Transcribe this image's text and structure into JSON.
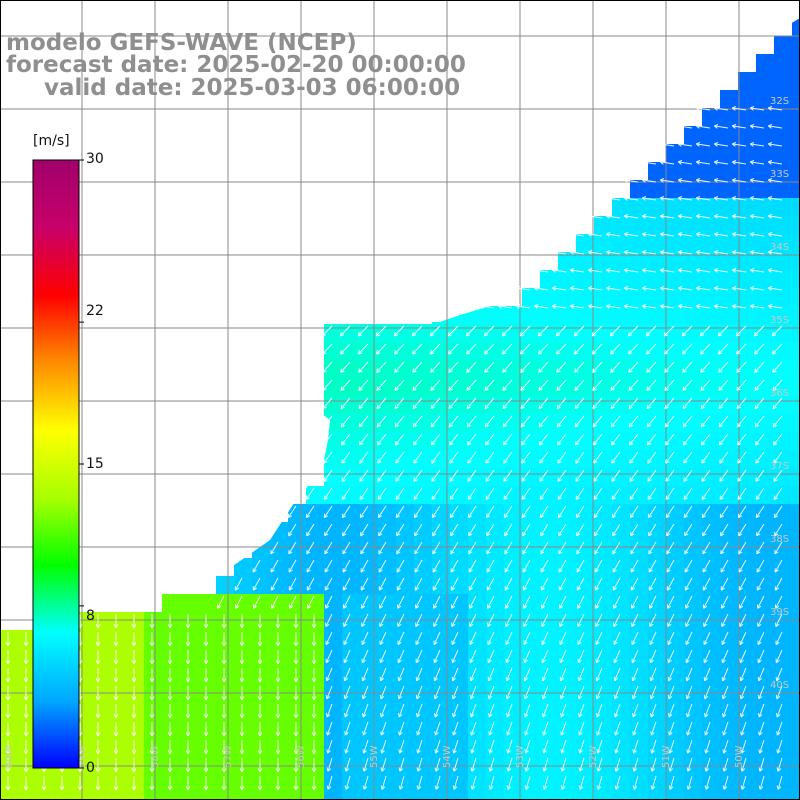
{
  "title": {
    "model": "modelo GEFS-WAVE (NCEP)",
    "forecast": "forecast date: 2025-02-20 00:00:00",
    "valid": "valid date: 2025-03-03 06:00:00"
  },
  "colorbar": {
    "unit": "[m/s]",
    "ticks": [
      "30",
      "22",
      "15",
      "8",
      "0"
    ],
    "tick_values": [
      30,
      22,
      15,
      8,
      0
    ],
    "range": [
      0,
      30
    ],
    "colors": [
      "#0000ff",
      "#00a8ff",
      "#00ffff",
      "#00ff00",
      "#a8ff00",
      "#ffff00",
      "#ff8c00",
      "#ff0000",
      "#c8006a",
      "#a0006a"
    ]
  },
  "map": {
    "grid_lines": true,
    "wind_arrows": true,
    "latitude_labels": [
      "32S",
      "33S",
      "34S",
      "35S",
      "36S",
      "37S",
      "38S",
      "39S",
      "40S"
    ],
    "longitude_labels": [
      "60W",
      "59W",
      "58W",
      "57W",
      "56W",
      "55W",
      "54W",
      "53W",
      "52W",
      "51W",
      "50W"
    ],
    "land_color": "#ffffff",
    "coast_color": "#000000"
  }
}
